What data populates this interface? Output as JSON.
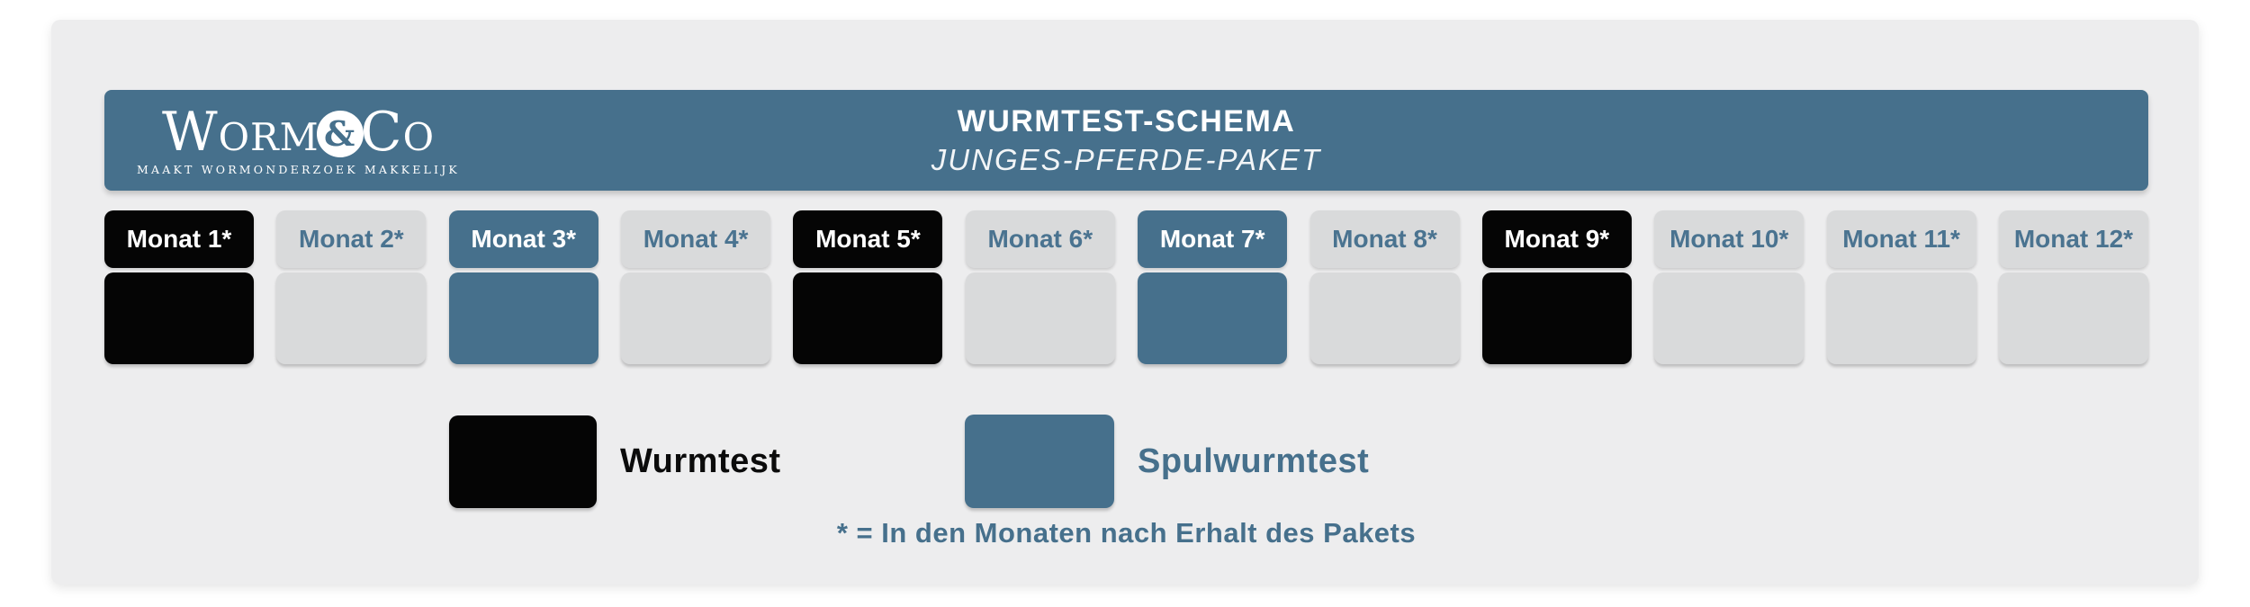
{
  "colors": {
    "page_background": "#ffffff",
    "card_background": "#ededee",
    "steel_blue": "#46708c",
    "black": "#050505",
    "gray_tile": "#d9dadb",
    "gray_label_text": "#4a7390",
    "white": "#ffffff"
  },
  "logo": {
    "word_left": "Worm",
    "ampersand": "&",
    "word_right": "Co",
    "tagline": "MAAKT WORMONDERZOEK MAKKELIJK"
  },
  "header": {
    "title": "WURMTEST-SCHEMA",
    "subtitle": "JUNGES-PFERDE-PAKET"
  },
  "months": {
    "items": [
      {
        "label": "Monat 1*",
        "type": "wurmtest"
      },
      {
        "label": "Monat 2*",
        "type": "none"
      },
      {
        "label": "Monat 3*",
        "type": "spulwurmtest"
      },
      {
        "label": "Monat 4*",
        "type": "none"
      },
      {
        "label": "Monat 5*",
        "type": "wurmtest"
      },
      {
        "label": "Monat 6*",
        "type": "none"
      },
      {
        "label": "Monat 7*",
        "type": "spulwurmtest"
      },
      {
        "label": "Monat 8*",
        "type": "none"
      },
      {
        "label": "Monat 9*",
        "type": "wurmtest"
      },
      {
        "label": "Monat 10*",
        "type": "none"
      },
      {
        "label": "Monat 11*",
        "type": "none"
      },
      {
        "label": "Monat 12*",
        "type": "none"
      }
    ]
  },
  "legend": {
    "wurmtest": {
      "label": "Wurmtest",
      "color": "#050505",
      "text_color": "#0b0b0b"
    },
    "spulwurmtest": {
      "label": "Spulwurmtest",
      "color": "#46708c",
      "text_color": "#46708c"
    }
  },
  "footnote": "* = In den Monaten nach Erhalt des Pakets"
}
